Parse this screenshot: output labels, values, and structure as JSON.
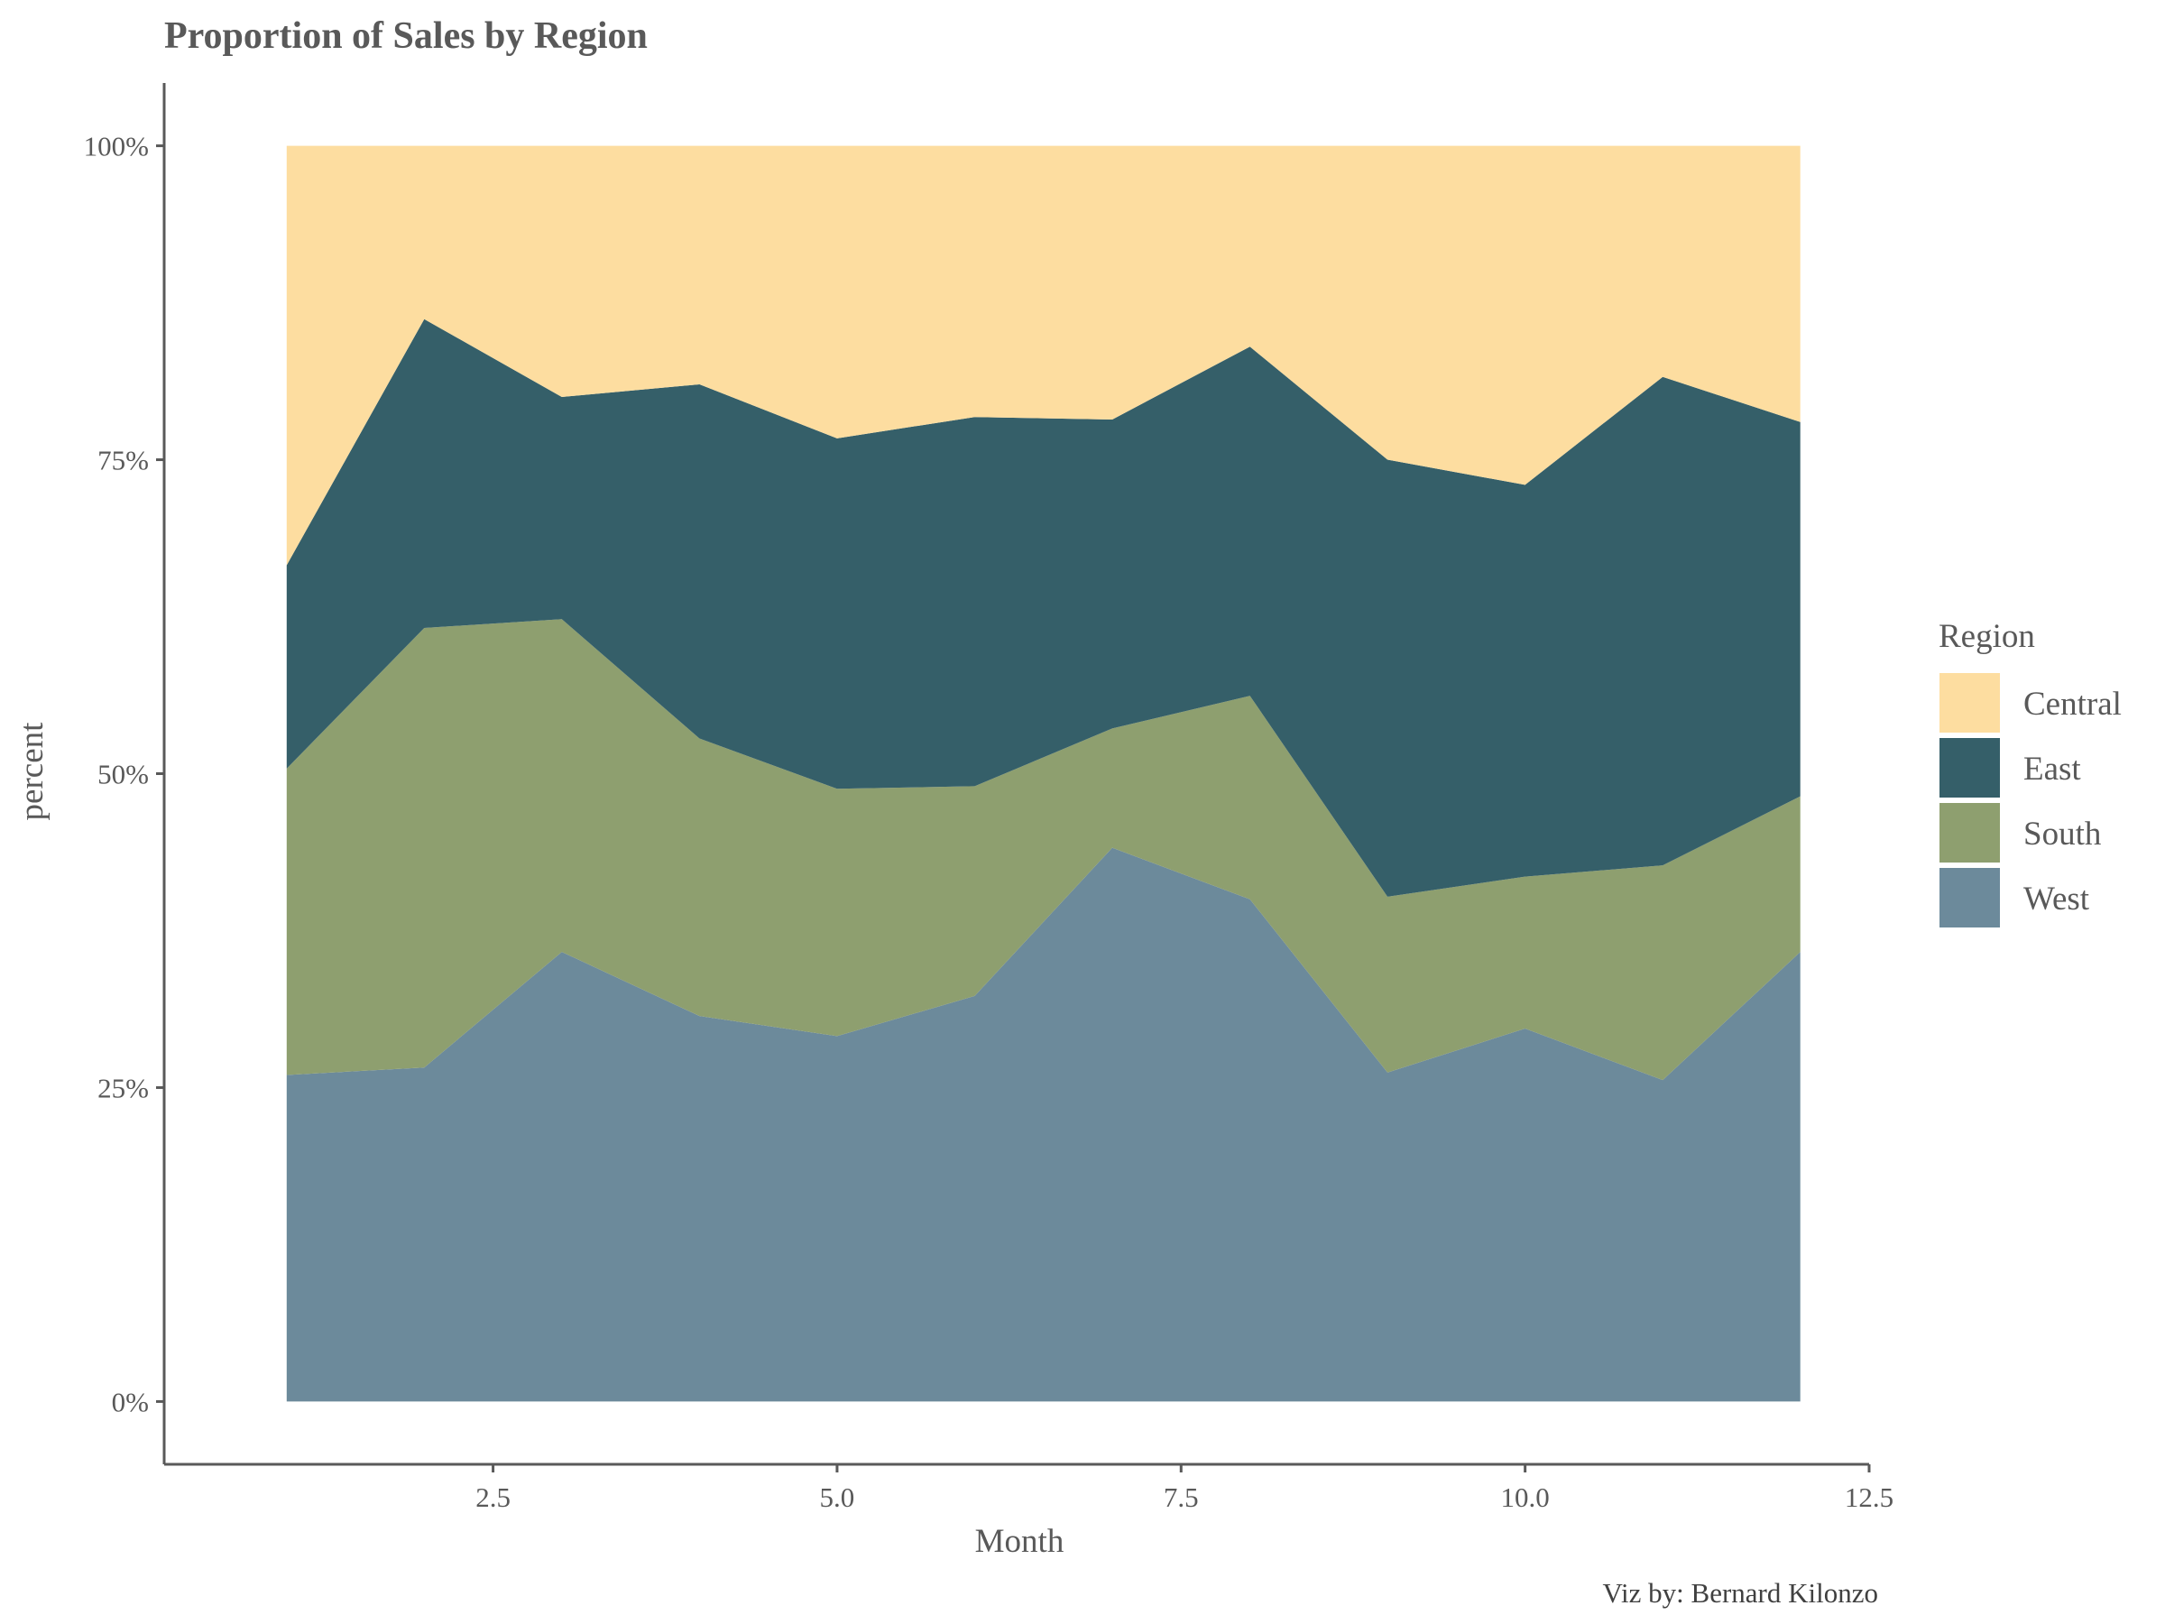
{
  "chart_data": {
    "type": "area",
    "stacked": "percent",
    "title": "Proportion of Sales by Region",
    "xlabel": "Month",
    "ylabel": "percent",
    "caption": "Viz by: Bernard Kilonzo",
    "xlim": [
      0.11,
      12.5
    ],
    "ylim": [
      -0.05,
      1.05
    ],
    "x_ticks": [
      2.5,
      5.0,
      7.5,
      10.0,
      12.5
    ],
    "x_tick_labels": [
      "2.5",
      "5.0",
      "7.5",
      "10.0",
      "12.5"
    ],
    "y_ticks": [
      0,
      0.25,
      0.5,
      0.75,
      1.0
    ],
    "y_tick_labels": [
      "0%",
      "25%",
      "50%",
      "75%",
      "100%"
    ],
    "grid": false,
    "legend": {
      "title": "Region",
      "placement": "right"
    },
    "x": [
      1,
      2,
      3,
      4,
      5,
      6,
      7,
      8,
      9,
      10,
      11,
      12
    ],
    "series": [
      {
        "name": "Central",
        "color": "#FDDDA0",
        "values": [
          0.334,
          0.138,
          0.2,
          0.19,
          0.233,
          0.216,
          0.218,
          0.16,
          0.25,
          0.27,
          0.184,
          0.22
        ]
      },
      {
        "name": "East",
        "color": "#355F69",
        "values": [
          0.162,
          0.246,
          0.177,
          0.282,
          0.279,
          0.294,
          0.246,
          0.278,
          0.348,
          0.312,
          0.389,
          0.298
        ]
      },
      {
        "name": "South",
        "color": "#8E9F6F",
        "values": [
          0.244,
          0.35,
          0.265,
          0.221,
          0.197,
          0.167,
          0.095,
          0.162,
          0.14,
          0.121,
          0.171,
          0.124
        ]
      },
      {
        "name": "West",
        "color": "#6C8A9B",
        "values": [
          0.26,
          0.266,
          0.358,
          0.307,
          0.291,
          0.323,
          0.441,
          0.4,
          0.262,
          0.297,
          0.256,
          0.358
        ]
      }
    ]
  }
}
